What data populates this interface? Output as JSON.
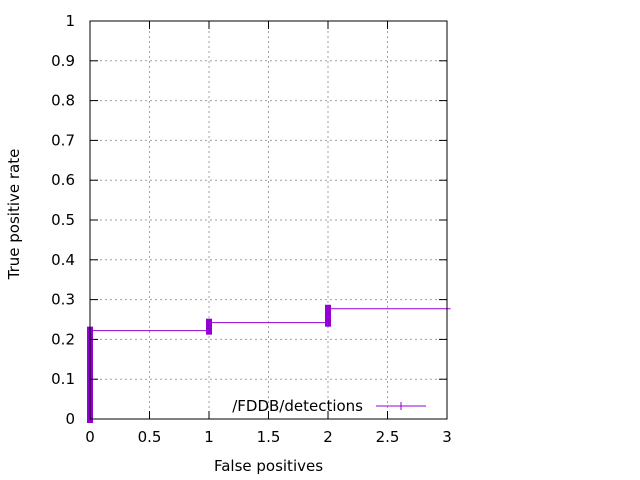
{
  "chart_data": {
    "type": "line",
    "title": "",
    "xlabel": "False positives",
    "ylabel": "True positive rate",
    "xlim": [
      0,
      3
    ],
    "ylim": [
      0,
      1
    ],
    "x_ticks": [
      {
        "value": 0,
        "label": "0"
      },
      {
        "value": 0.5,
        "label": "0.5"
      },
      {
        "value": 1,
        "label": "1"
      },
      {
        "value": 1.5,
        "label": "1.5"
      },
      {
        "value": 2,
        "label": "2"
      },
      {
        "value": 2.5,
        "label": "2.5"
      },
      {
        "value": 3,
        "label": "3"
      }
    ],
    "y_ticks": [
      {
        "value": 0,
        "label": "0"
      },
      {
        "value": 0.1,
        "label": "0.1"
      },
      {
        "value": 0.2,
        "label": "0.2"
      },
      {
        "value": 0.3,
        "label": "0.3"
      },
      {
        "value": 0.4,
        "label": "0.4"
      },
      {
        "value": 0.5,
        "label": "0.5"
      },
      {
        "value": 0.6,
        "label": "0.6"
      },
      {
        "value": 0.7,
        "label": "0.7"
      },
      {
        "value": 0.8,
        "label": "0.8"
      },
      {
        "value": 0.9,
        "label": "0.9"
      },
      {
        "value": 1,
        "label": "1"
      }
    ],
    "grid": true,
    "legend": "bottom-right",
    "series": [
      {
        "name": "/FDDB/detections",
        "color": "#9400d3",
        "marker": "plus",
        "points": [
          {
            "x": 0,
            "y": 0
          },
          {
            "x": 0,
            "y": 0.222
          },
          {
            "x": 1,
            "y": 0.222
          },
          {
            "x": 1,
            "y": 0.242
          },
          {
            "x": 2,
            "y": 0.242
          },
          {
            "x": 2,
            "y": 0.277
          },
          {
            "x": 3.03,
            "y": 0.277
          }
        ],
        "marker_clusters": [
          {
            "x": 0,
            "y_min": 0,
            "y_max": 0.222
          },
          {
            "x": 1,
            "y_min": 0.222,
            "y_max": 0.242
          },
          {
            "x": 2,
            "y_min": 0.242,
            "y_max": 0.277
          }
        ]
      }
    ]
  }
}
